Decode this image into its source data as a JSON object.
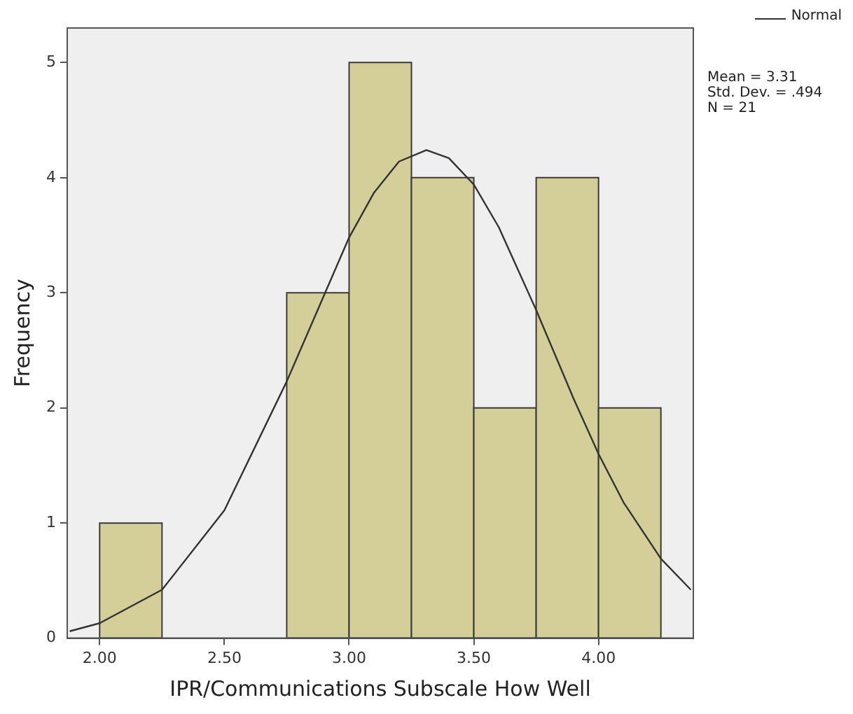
{
  "chart_data": {
    "type": "histogram",
    "xlabel": "IPR/Communications Subscale How Well",
    "ylabel": "Frequency",
    "bins": [
      2.0,
      2.25,
      2.5,
      2.75,
      3.0,
      3.25,
      3.5,
      3.75,
      4.0,
      4.25
    ],
    "values": [
      1,
      0,
      0,
      3,
      5,
      4,
      2,
      4,
      2
    ],
    "color": "#d4cf98",
    "xlim": [
      1.87,
      4.38
    ],
    "xticks": [
      {
        "value": 2,
        "label": "2.00"
      },
      {
        "value": 2.5,
        "label": "2.50"
      },
      {
        "value": 3,
        "label": "3.00"
      },
      {
        "value": 3.5,
        "label": "3.50"
      },
      {
        "value": 4,
        "label": "4.00"
      }
    ],
    "ylim": [
      0,
      5.3
    ],
    "yticks": [
      0,
      1,
      2,
      3,
      4,
      5
    ],
    "grid": false,
    "legend": "top right",
    "annotations": [
      "Mean = 3.31",
      "Std. Dev. = .494",
      "N = 21"
    ],
    "series": [
      {
        "name": "Normal",
        "type": "line",
        "color": "#333333",
        "x": [
          1.88,
          2.0,
          2.25,
          2.5,
          2.75,
          3.0,
          3.1,
          3.2,
          3.31,
          3.4,
          3.5,
          3.6,
          3.75,
          3.9,
          4.0,
          4.1,
          4.25,
          4.37
        ],
        "values": [
          0.06,
          0.13,
          0.42,
          1.11,
          2.23,
          3.48,
          3.87,
          4.14,
          4.24,
          4.17,
          3.94,
          3.57,
          2.85,
          2.08,
          1.6,
          1.18,
          0.69,
          0.42
        ]
      }
    ]
  }
}
